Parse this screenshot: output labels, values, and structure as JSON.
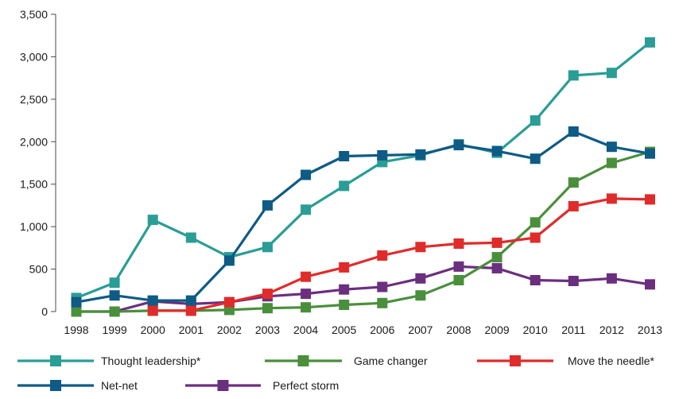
{
  "chart_data": {
    "type": "line",
    "x": [
      "1998",
      "1999",
      "2000",
      "2001",
      "2002",
      "2003",
      "2004",
      "2005",
      "2006",
      "2007",
      "2008",
      "2009",
      "2010",
      "2011",
      "2012",
      "2013"
    ],
    "ylim": [
      0,
      3500
    ],
    "yticks": [
      "0",
      "500",
      "1,000",
      "1,500",
      "2,000",
      "2,500",
      "3,000",
      "3,500"
    ],
    "ytick_values": [
      0,
      500,
      1000,
      1500,
      2000,
      2500,
      3000,
      3500
    ],
    "grid": false,
    "legend_position": "bottom",
    "title": "",
    "xlabel": "",
    "ylabel": "",
    "series": [
      {
        "name": "Thought leadership*",
        "color": "#2a9d96",
        "values": [
          160,
          340,
          1080,
          870,
          640,
          760,
          1200,
          1480,
          1760,
          1840,
          1970,
          1870,
          2250,
          2780,
          2810,
          3170
        ]
      },
      {
        "name": "Game changer",
        "color": "#4a8f3c",
        "values": [
          0,
          0,
          10,
          10,
          20,
          40,
          50,
          80,
          100,
          190,
          370,
          640,
          1050,
          1520,
          1750,
          1880
        ]
      },
      {
        "name": "Move the needle*",
        "color": "#e02b2b",
        "values": [
          null,
          null,
          10,
          10,
          110,
          210,
          410,
          520,
          660,
          760,
          800,
          810,
          870,
          1240,
          1330,
          1320
        ]
      },
      {
        "name": "Net-net",
        "color": "#0e5b86",
        "values": [
          110,
          190,
          130,
          130,
          600,
          1250,
          1610,
          1830,
          1840,
          1850,
          1960,
          1890,
          1800,
          2120,
          1940,
          1860
        ]
      },
      {
        "name": "Perfect storm",
        "color": "#6b2f7f",
        "values": [
          0,
          0,
          120,
          90,
          110,
          180,
          210,
          260,
          290,
          390,
          530,
          510,
          370,
          360,
          390,
          320
        ]
      }
    ]
  }
}
